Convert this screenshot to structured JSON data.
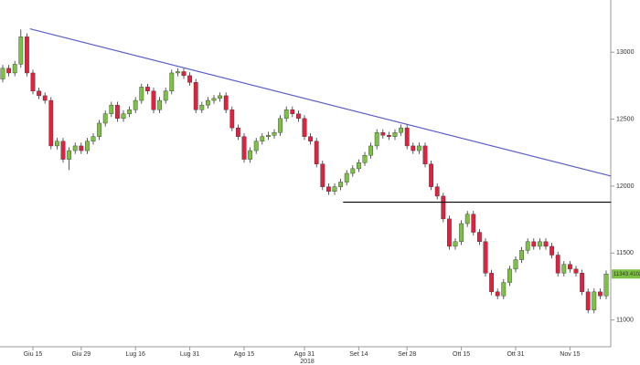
{
  "chart_data": {
    "type": "candlestick",
    "categories": [
      null,
      null,
      null,
      null,
      null,
      "Giu 15",
      null,
      null,
      null,
      null,
      null,
      null,
      null,
      "Giu 29",
      null,
      null,
      null,
      null,
      null,
      null,
      null,
      null,
      "Lug 16",
      null,
      null,
      null,
      null,
      null,
      null,
      null,
      null,
      "Lug 31",
      null,
      null,
      null,
      null,
      null,
      null,
      null,
      null,
      "Ago 15",
      null,
      null,
      null,
      null,
      null,
      null,
      null,
      null,
      null,
      "Ago 31",
      null,
      null,
      null,
      null,
      null,
      null,
      null,
      null,
      "Set 14",
      null,
      null,
      null,
      null,
      null,
      null,
      null,
      "Set 28",
      null,
      null,
      null,
      null,
      null,
      null,
      null,
      null,
      "Ott 15",
      null,
      null,
      null,
      null,
      null,
      null,
      null,
      null,
      "Ott 31",
      null,
      null,
      null,
      null,
      null,
      null,
      null,
      null,
      "Nov 15",
      null,
      null,
      null,
      null,
      null,
      null
    ],
    "open": [
      12800,
      12880,
      12845,
      12910,
      13115,
      12845,
      12710,
      12675,
      12640,
      12300,
      12335,
      12200,
      12265,
      12300,
      12265,
      12335,
      12370,
      12470,
      12540,
      12605,
      12505,
      12540,
      12570,
      12640,
      12740,
      12710,
      12570,
      12640,
      12710,
      12845,
      12855,
      12825,
      12775,
      12570,
      12605,
      12640,
      12655,
      12675,
      12570,
      12435,
      12370,
      12200,
      12265,
      12335,
      12370,
      12380,
      12400,
      12505,
      12570,
      12540,
      12505,
      12370,
      12335,
      12165,
      11995,
      11960,
      11995,
      12030,
      12095,
      12130,
      12175,
      12230,
      12300,
      12400,
      12380,
      12370,
      12400,
      12435,
      12300,
      12265,
      12300,
      12165,
      11995,
      11925,
      11755,
      11550,
      11585,
      11720,
      11790,
      11655,
      11585,
      11350,
      11210,
      11180,
      11280,
      11380,
      11450,
      11520,
      11585,
      11550,
      11585,
      11550,
      11485,
      11350,
      11415,
      11380,
      11350,
      11210,
      11075,
      11210,
      11180
    ],
    "high": [
      12905,
      12905,
      12935,
      13170,
      13140,
      12870,
      12735,
      12700,
      12665,
      12360,
      12360,
      12290,
      12325,
      12325,
      12360,
      12395,
      12495,
      12565,
      12630,
      12630,
      12565,
      12595,
      12665,
      12765,
      12765,
      12735,
      12665,
      12735,
      12870,
      12880,
      12880,
      12850,
      12800,
      12630,
      12665,
      12680,
      12700,
      12700,
      12595,
      12460,
      12395,
      12290,
      12360,
      12395,
      12405,
      12425,
      12530,
      12595,
      12595,
      12565,
      12530,
      12395,
      12360,
      12190,
      12020,
      12020,
      12055,
      12120,
      12155,
      12200,
      12255,
      12325,
      12425,
      12425,
      12405,
      12425,
      12460,
      12460,
      12325,
      12325,
      12325,
      12190,
      12020,
      11950,
      11780,
      11610,
      11745,
      11815,
      11815,
      11680,
      11610,
      11375,
      11235,
      11305,
      11405,
      11475,
      11545,
      11610,
      11610,
      11610,
      11610,
      11575,
      11510,
      11440,
      11440,
      11405,
      11375,
      11235,
      11235,
      11235,
      11370
    ],
    "low": [
      12775,
      12820,
      12820,
      12885,
      12820,
      12685,
      12650,
      12615,
      12275,
      12275,
      12175,
      12120,
      12240,
      12240,
      12240,
      12310,
      12345,
      12445,
      12515,
      12480,
      12480,
      12515,
      12545,
      12615,
      12685,
      12545,
      12545,
      12615,
      12685,
      12820,
      12800,
      12750,
      12545,
      12545,
      12580,
      12615,
      12630,
      12545,
      12410,
      12345,
      12175,
      12175,
      12240,
      12310,
      12345,
      12355,
      12375,
      12480,
      12515,
      12480,
      12345,
      12310,
      12140,
      11970,
      11935,
      11935,
      11970,
      12005,
      12070,
      12105,
      12150,
      12205,
      12275,
      12355,
      12345,
      12345,
      12375,
      12275,
      12240,
      12240,
      12140,
      11970,
      11900,
      11730,
      11525,
      11525,
      11560,
      11695,
      11630,
      11560,
      11325,
      11185,
      11155,
      11155,
      11255,
      11355,
      11425,
      11495,
      11525,
      11525,
      11525,
      11460,
      11325,
      11325,
      11355,
      11325,
      11185,
      11050,
      11050,
      11155,
      11155
    ],
    "close": [
      12880,
      12845,
      12910,
      13115,
      12845,
      12710,
      12675,
      12640,
      12300,
      12335,
      12200,
      12265,
      12300,
      12265,
      12335,
      12370,
      12470,
      12540,
      12605,
      12505,
      12540,
      12570,
      12640,
      12740,
      12710,
      12570,
      12640,
      12710,
      12845,
      12855,
      12825,
      12775,
      12570,
      12605,
      12640,
      12655,
      12675,
      12570,
      12435,
      12370,
      12200,
      12265,
      12335,
      12370,
      12380,
      12400,
      12505,
      12570,
      12540,
      12505,
      12370,
      12335,
      12165,
      11995,
      11960,
      11995,
      12030,
      12095,
      12130,
      12175,
      12230,
      12300,
      12400,
      12380,
      12370,
      12400,
      12435,
      12300,
      12265,
      12300,
      12165,
      11995,
      11925,
      11755,
      11550,
      11585,
      11720,
      11790,
      11655,
      11585,
      11350,
      11210,
      11180,
      11280,
      11380,
      11450,
      11520,
      11585,
      11550,
      11585,
      11550,
      11485,
      11350,
      11415,
      11380,
      11350,
      11210,
      11075,
      11210,
      11180,
      11343.4102
    ],
    "up_color": "#7cc242",
    "down_color": "#e2213f",
    "ylim": [
      10800,
      13390
    ],
    "yticks": [
      11000,
      11500,
      12000,
      12500,
      13000
    ],
    "year_label": "2018",
    "lines": [
      {
        "color": "#5b60c6",
        "points": [
          [
            4.5,
            13175
          ],
          [
            100.8,
            12075
          ]
        ]
      },
      {
        "color": "#000000",
        "points": [
          [
            56.4,
            11880
          ],
          [
            100.8,
            11880
          ]
        ]
      }
    ]
  }
}
